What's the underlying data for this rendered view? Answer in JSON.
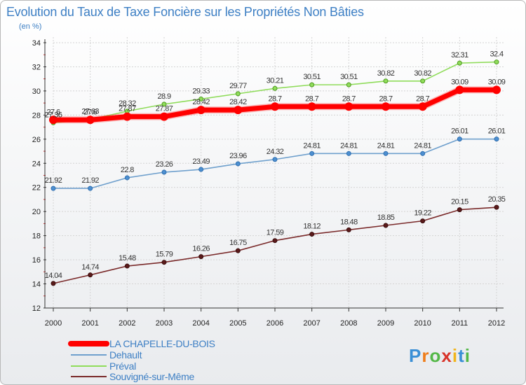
{
  "chart_data": {
    "type": "line",
    "title": "Evolution du Taux de Taxe Foncière sur les Propriétés Non Bâties",
    "subtitle": "(en %)",
    "xlabel": "",
    "ylabel": "",
    "ylim": [
      12,
      34
    ],
    "yticks": [
      "12",
      "14",
      "16",
      "18",
      "20",
      "22",
      "24",
      "26",
      "28",
      "30",
      "32",
      "34"
    ],
    "categories": [
      "2000",
      "2001",
      "2002",
      "2003",
      "2004",
      "2005",
      "2006",
      "2007",
      "2008",
      "2009",
      "2010",
      "2011",
      "2012"
    ],
    "grid": true,
    "legend_position": "bottom-left",
    "series": [
      {
        "name": "LA CHAPELLE-DU-BOIS",
        "color": "#ff0000",
        "values": [
          27.6,
          27.6,
          27.87,
          27.87,
          28.42,
          28.42,
          28.7,
          28.7,
          28.7,
          28.7,
          28.7,
          30.09,
          30.09
        ],
        "labels": [
          "27.6",
          "27.6",
          "27.87",
          "27.87",
          "28.42",
          "28.42",
          "28.7",
          "28.7",
          "28.7",
          "28.7",
          "28.7",
          "30.09",
          "30.09"
        ]
      },
      {
        "name": "Dehault",
        "color": "#6fa0cd",
        "values": [
          21.92,
          21.92,
          22.8,
          23.26,
          23.49,
          23.96,
          24.32,
          24.81,
          24.81,
          24.81,
          24.81,
          26.01,
          26.01
        ],
        "labels": [
          "21.92",
          "21.92",
          "22.8",
          "23.26",
          "23.49",
          "23.96",
          "24.32",
          "24.81",
          "24.81",
          "24.81",
          "24.81",
          "26.01",
          "26.01"
        ]
      },
      {
        "name": "Préval",
        "color": "#8fdc5a",
        "values": [
          27.36,
          27.63,
          28.32,
          28.9,
          29.33,
          29.77,
          30.21,
          30.51,
          30.51,
          30.82,
          30.82,
          32.31,
          32.4
        ],
        "labels": [
          "27.36",
          "27.63",
          "28.32",
          "28.9",
          "29.33",
          "29.77",
          "30.21",
          "30.51",
          "30.51",
          "30.82",
          "30.82",
          "32.31",
          "32.4"
        ]
      },
      {
        "name": "Souvigné-sur-Même",
        "color": "#7a2a2a",
        "values": [
          14.04,
          14.74,
          15.48,
          15.79,
          16.26,
          16.75,
          17.59,
          18.12,
          18.48,
          18.85,
          19.22,
          20.15,
          20.35
        ],
        "labels": [
          "14.04",
          "14.74",
          "15.48",
          "15.79",
          "16.26",
          "16.75",
          "17.59",
          "18.12",
          "18.48",
          "18.85",
          "19.22",
          "20.15",
          "20.35"
        ]
      }
    ]
  },
  "brand": {
    "logo_text": "Proxiti",
    "letters": [
      "P",
      "r",
      "o",
      "x",
      "i",
      "t",
      "i"
    ],
    "colors": [
      "#3a8fd6",
      "#ef7d1a",
      "#54b848",
      "#d8342a",
      "#f1b51c",
      "#3a8fd6",
      "#54b848"
    ]
  }
}
